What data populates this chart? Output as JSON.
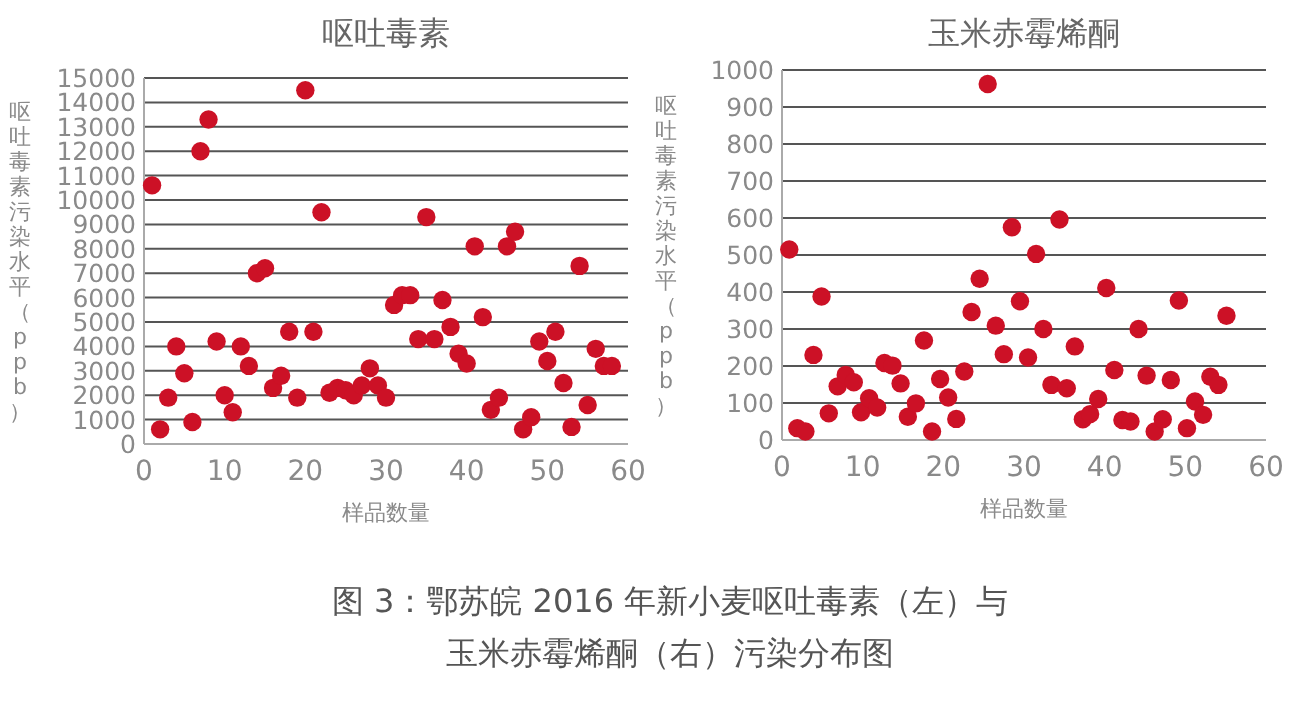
{
  "chart_data": [
    {
      "type": "scatter",
      "title": "呕吐毒素",
      "xlabel": "样品数量",
      "ylabel": "呕吐毒素污染水平（ppb）",
      "xlim": [
        0,
        60
      ],
      "xticks": [
        0,
        10,
        20,
        30,
        40,
        50,
        60
      ],
      "ylim": [
        0,
        15000
      ],
      "yticks": [
        0,
        1000,
        2000,
        3000,
        4000,
        5000,
        6000,
        7000,
        8000,
        9000,
        10000,
        11000,
        12000,
        13000,
        14000,
        15000
      ],
      "grid": "y",
      "marker": "circle",
      "annotations": [
        "图 3：鄂苏皖 2016 年新小麦呕吐毒素（左）与玉米赤霉烯酮（右）污染分布图"
      ],
      "series": [
        {
          "color": "#cc1126",
          "x": [
            1,
            2,
            3,
            4,
            5,
            6,
            7,
            8,
            9,
            10,
            11,
            12,
            13,
            14,
            15,
            16,
            17,
            18,
            19,
            20,
            21,
            22,
            23,
            24,
            25,
            26,
            27,
            28,
            29,
            30,
            31,
            32,
            33,
            34,
            35,
            36,
            37,
            38,
            39,
            40,
            41,
            42,
            43,
            44,
            45,
            46,
            47,
            48,
            49,
            50,
            51,
            52,
            53,
            54,
            55,
            56,
            57,
            58
          ],
          "values": [
            10600,
            600,
            1900,
            4000,
            2900,
            900,
            12000,
            13300,
            4200,
            2000,
            1300,
            4000,
            3200,
            7000,
            7200,
            2300,
            2800,
            4600,
            1900,
            14500,
            4600,
            9500,
            2100,
            2300,
            2200,
            2000,
            2400,
            3100,
            2400,
            1900,
            5700,
            6100,
            6100,
            4300,
            9300,
            4300,
            5900,
            4800,
            3700,
            3300,
            8100,
            5200,
            1400,
            1900,
            8100,
            8700,
            600,
            1100,
            4200,
            3400,
            4600,
            2500,
            700,
            7300,
            1600,
            3900,
            3200,
            3200
          ]
        }
      ]
    },
    {
      "type": "scatter",
      "title": "玉米赤霉烯酮",
      "xlabel": "样品数量",
      "ylabel": "呕吐毒素污染水平（ppb）",
      "xlim": [
        0,
        60
      ],
      "xticks": [
        0,
        10,
        20,
        30,
        40,
        50,
        60
      ],
      "ylim": [
        0,
        1000
      ],
      "yticks": [
        0,
        100,
        200,
        300,
        400,
        500,
        600,
        700,
        800,
        900,
        1000
      ],
      "grid": "y",
      "marker": "circle",
      "series": [
        {
          "color": "#cc1126",
          "x": [
            0.9,
            1.9,
            2.9,
            3.9,
            4.9,
            5.8,
            6.9,
            7.9,
            8.9,
            9.8,
            10.8,
            11.8,
            12.7,
            13.7,
            14.7,
            15.6,
            16.6,
            17.6,
            18.6,
            19.6,
            20.6,
            21.6,
            22.6,
            23.5,
            24.5,
            25.5,
            26.5,
            27.5,
            28.5,
            29.5,
            30.5,
            31.5,
            32.4,
            33.4,
            34.4,
            35.3,
            36.3,
            37.3,
            38.2,
            39.2,
            40.2,
            41.2,
            42.2,
            43.2,
            44.2,
            45.2,
            46.2,
            47.2,
            48.2,
            49.2,
            50.2,
            51.2,
            52.2,
            53.1,
            54.1,
            55.1
          ],
          "values": [
            515,
            32,
            23,
            230,
            388,
            72,
            145,
            176,
            156,
            75,
            113,
            88,
            208,
            201,
            153,
            63,
            99,
            269,
            23,
            165,
            115,
            57,
            185,
            346,
            436,
            962,
            309,
            232,
            575,
            375,
            223,
            503,
            300,
            149,
            596,
            140,
            253,
            56,
            70,
            111,
            411,
            189,
            54,
            50,
            300,
            174,
            23,
            56,
            162,
            377,
            32,
            104,
            68,
            171,
            149,
            336
          ]
        }
      ]
    }
  ]
}
